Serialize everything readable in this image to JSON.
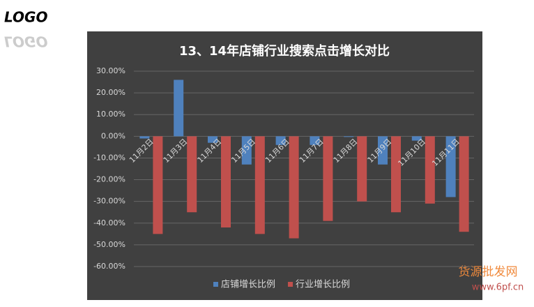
{
  "logo": "LOGO",
  "watermark": {
    "name": "货源批发网",
    "url": "www.6pf.cn"
  },
  "chart_data": {
    "type": "bar",
    "title": "13、14年店铺行业搜索点击增长对比",
    "categories": [
      "11月2日",
      "11月3日",
      "11月4日",
      "11月5日",
      "11月6日",
      "11月7日",
      "11月8日",
      "11月9日",
      "11月10日",
      "11月11日"
    ],
    "series": [
      {
        "name": "店铺增长比例",
        "color": "#4f81bd",
        "values": [
          -1,
          26,
          -3,
          -13,
          -4,
          -4,
          0,
          -13,
          -2,
          -28
        ]
      },
      {
        "name": "行业增长比例",
        "color": "#c0504d",
        "values": [
          -45,
          -35,
          -42,
          -45,
          -47,
          -39,
          -30,
          -35,
          -31,
          -44
        ]
      }
    ],
    "ylim": [
      -60,
      30
    ],
    "yticks": [
      {
        "value": 30,
        "label": "30.00%"
      },
      {
        "value": 20,
        "label": "20.00%"
      },
      {
        "value": 10,
        "label": "10.00%"
      },
      {
        "value": 0,
        "label": "0.00%"
      },
      {
        "value": -10,
        "label": "-10.00%"
      },
      {
        "value": -20,
        "label": "-20.00%"
      },
      {
        "value": -30,
        "label": "-30.00%"
      },
      {
        "value": -40,
        "label": "-40.00%"
      },
      {
        "value": -50,
        "label": "-50.00%"
      },
      {
        "value": -60,
        "label": "-60.00%"
      }
    ],
    "grid": true,
    "legend": "bottom"
  }
}
